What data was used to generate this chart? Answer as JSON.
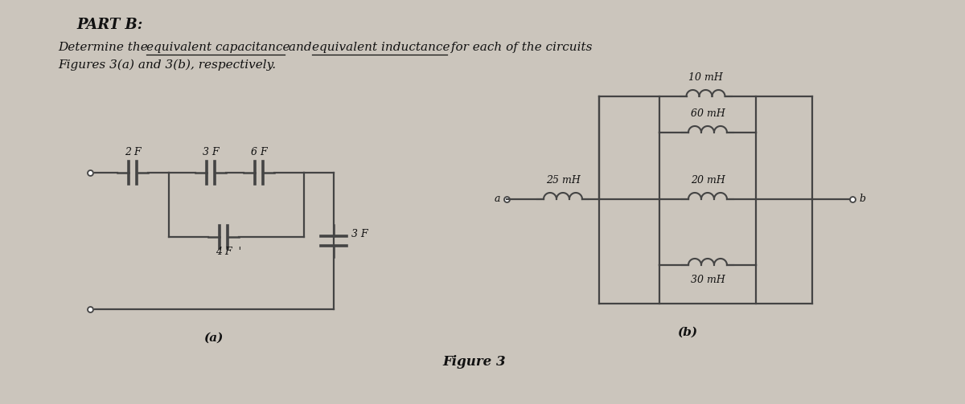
{
  "bg_color": "#cbc5bc",
  "text_color": "#111111",
  "line_color": "#444444",
  "title": "PART B:",
  "desc1a": "Determine the ",
  "desc1b": "equivalent capacitance",
  "desc1c": " and ",
  "desc1d": "equivalent inductance",
  "desc1e": " for each of the circuits",
  "desc2": "Figures 3(a) and 3(b), respectively.",
  "label_a": "(a)",
  "label_b": "(b)",
  "fig_label": "Figure 3",
  "font_title": 13,
  "font_body": 11,
  "font_circuit": 9,
  "font_label": 11,
  "font_fig": 12
}
